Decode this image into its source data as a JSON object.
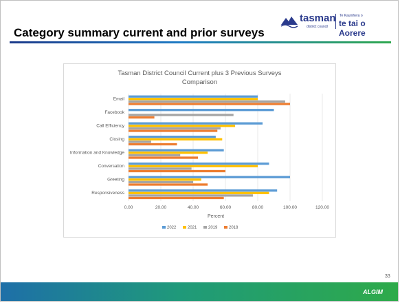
{
  "slide": {
    "title": "Category summary current and prior surveys",
    "page_number": "33",
    "footer_logo": "ALGIM",
    "colors": {
      "title_bar_start": "#1b3a8a",
      "title_bar_end": "#2fa84f",
      "footer": "#2eaa4a"
    }
  },
  "logo": {
    "name": "tasman",
    "subtitle": "district council",
    "maori_small": "Te Kaunihera o",
    "maori": "te tai o Aorere",
    "icon": "tasman-logo-icon"
  },
  "chart_data": {
    "type": "bar",
    "orientation": "horizontal",
    "title": "Tasman District Council Current plus 3 Previous Surveys Comparison",
    "title_lines": [
      "Tasman District Council Current plus 3 Previous Surveys",
      "Comparison"
    ],
    "xlabel": "Percent",
    "ylabel": "",
    "xlim": [
      0,
      120
    ],
    "xticks": [
      "0.00",
      "20.00",
      "40.00",
      "60.00",
      "80.00",
      "100.00",
      "120.00"
    ],
    "grid": true,
    "legend_position": "bottom",
    "categories": [
      "Email",
      "Facebook",
      "Call Efficiency",
      "Closing",
      "Information and Knowledge",
      "Conversation",
      "Greeting",
      "Responsiveness"
    ],
    "series": [
      {
        "name": "2022",
        "color": "#5b9bd5",
        "values": [
          80,
          90,
          83,
          54,
          59,
          87,
          100,
          92
        ]
      },
      {
        "name": "2021",
        "color": "#ffc000",
        "values": [
          80,
          null,
          66,
          58,
          49,
          80,
          45,
          87
        ]
      },
      {
        "name": "2019",
        "color": "#a5a5a5",
        "values": [
          97,
          65,
          57,
          14,
          32,
          39,
          40,
          77
        ]
      },
      {
        "name": "2018",
        "color": "#ed7d31",
        "values": [
          100,
          16,
          55,
          30,
          43,
          60,
          49,
          59
        ]
      }
    ]
  }
}
